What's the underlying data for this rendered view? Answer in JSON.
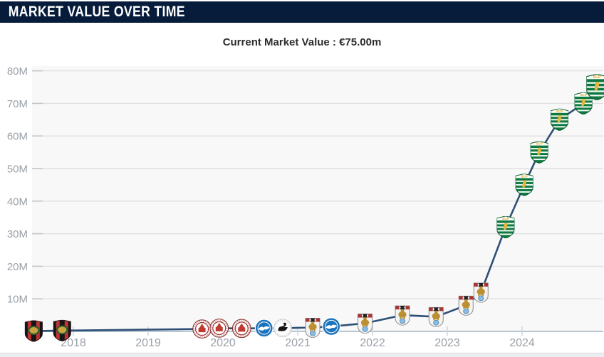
{
  "header": {
    "title": "MARKET VALUE OVER TIME"
  },
  "current_value_label": "Current Market Value : €75.00m",
  "chart_data": {
    "type": "line",
    "title": "MARKET VALUE OVER TIME",
    "annotation": "Current Market Value : €75.00m",
    "x_ticks": [
      "2018",
      "2019",
      "2020",
      "2021",
      "2022",
      "2023",
      "2024"
    ],
    "y_ticks": [
      "10M",
      "20M",
      "30M",
      "40M",
      "50M",
      "60M",
      "70M",
      "80M"
    ],
    "xlim": [
      2017.3,
      2025.1
    ],
    "ylim": [
      0,
      81.4
    ],
    "grid": true,
    "legend": false,
    "line_color": "#2e4f76",
    "x_unit": "year",
    "y_unit": "EUR millions",
    "points": [
      {
        "x": 2017.47,
        "value_m": 0.1,
        "club": "IF Brommapojkarna"
      },
      {
        "x": 2017.85,
        "value_m": 0.25,
        "club": "IF Brommapojkarna"
      },
      {
        "x": 2019.72,
        "value_m": 0.75,
        "club": "FC St. Pauli"
      },
      {
        "x": 2019.95,
        "value_m": 1.0,
        "club": "FC St. Pauli"
      },
      {
        "x": 2020.25,
        "value_m": 0.9,
        "club": "FC St. Pauli"
      },
      {
        "x": 2020.55,
        "value_m": 1.0,
        "club": "Brighton & Hove Albion"
      },
      {
        "x": 2020.8,
        "value_m": 1.0,
        "club": "Swansea City"
      },
      {
        "x": 2021.2,
        "value_m": 1.2,
        "club": "Coventry City"
      },
      {
        "x": 2021.45,
        "value_m": 1.5,
        "club": "Brighton & Hove Albion"
      },
      {
        "x": 2021.9,
        "value_m": 2.5,
        "club": "Coventry City"
      },
      {
        "x": 2022.4,
        "value_m": 5.0,
        "club": "Coventry City"
      },
      {
        "x": 2022.85,
        "value_m": 4.5,
        "club": "Coventry City"
      },
      {
        "x": 2023.25,
        "value_m": 8.0,
        "club": "Coventry City"
      },
      {
        "x": 2023.45,
        "value_m": 12.0,
        "club": "Coventry City"
      },
      {
        "x": 2023.78,
        "value_m": 32.0,
        "club": "Sporting CP"
      },
      {
        "x": 2024.03,
        "value_m": 45.0,
        "club": "Sporting CP"
      },
      {
        "x": 2024.23,
        "value_m": 55.0,
        "club": "Sporting CP"
      },
      {
        "x": 2024.5,
        "value_m": 65.0,
        "club": "Sporting CP"
      },
      {
        "x": 2024.82,
        "value_m": 70.0,
        "club": "Sporting CP"
      },
      {
        "x": 2025.0,
        "value_m": 75.0,
        "club": "Sporting CP"
      }
    ]
  }
}
